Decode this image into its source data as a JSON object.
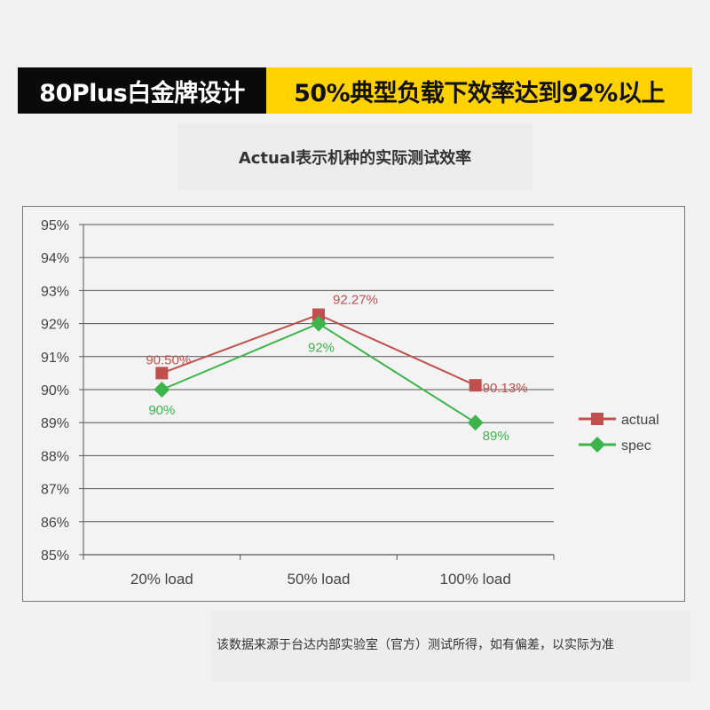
{
  "banner": {
    "left_text": "80Plus白金牌设计",
    "right_text": "50%典型负载下效率达到92%以上"
  },
  "subtitle": "Actual表示机种的实际测试效率",
  "footnote": "该数据来源于台达内部实验室（官方）测试所得，如有偏差，以实际为准",
  "chart_data": {
    "type": "line",
    "title": "",
    "xlabel": "",
    "ylabel": "",
    "categories": [
      "20% load",
      "50% load",
      "100% load"
    ],
    "ylim": [
      85,
      95
    ],
    "yticks": [
      "85%",
      "86%",
      "87%",
      "88%",
      "89%",
      "90%",
      "91%",
      "92%",
      "93%",
      "94%",
      "95%"
    ],
    "grid": true,
    "legend_position": "right",
    "series": [
      {
        "name": "actual",
        "values": [
          90.5,
          92.27,
          90.13
        ],
        "labels": [
          "90.50%",
          "92.27%",
          "90.13%"
        ],
        "color": "#c0504d",
        "marker": "square"
      },
      {
        "name": "spec",
        "values": [
          90,
          92,
          89
        ],
        "labels": [
          "90%",
          "92%",
          "89%"
        ],
        "color": "#3cb44b",
        "marker": "diamond"
      }
    ]
  }
}
